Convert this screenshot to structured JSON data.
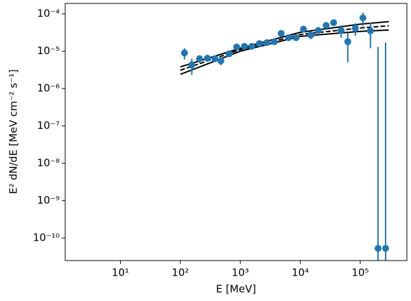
{
  "chart_data": {
    "type": "scatter",
    "xlabel": "E [MeV]",
    "ylabel": "E² dN/dE [MeV cm⁻² s⁻¹]",
    "xlog": true,
    "ylog": true,
    "xlim": [
      1.2,
      600000
    ],
    "ylim": [
      2.5e-11,
      0.00019
    ],
    "xticks": [
      {
        "value": 10,
        "label": "10¹"
      },
      {
        "value": 100,
        "label": "10²"
      },
      {
        "value": 1000,
        "label": "10³"
      },
      {
        "value": 10000,
        "label": "10⁴"
      },
      {
        "value": 100000,
        "label": "10⁵"
      }
    ],
    "yticks": [
      {
        "value": 1e-10,
        "label": "10⁻¹⁰"
      },
      {
        "value": 1e-09,
        "label": "10⁻⁹"
      },
      {
        "value": 1e-08,
        "label": "10⁻⁸"
      },
      {
        "value": 1e-07,
        "label": "10⁻⁷"
      },
      {
        "value": 1e-06,
        "label": "10⁻⁶"
      },
      {
        "value": 1e-05,
        "label": "10⁻⁵"
      },
      {
        "value": 0.0001,
        "label": "10⁻⁴"
      }
    ],
    "points": {
      "color": "#1f77b4",
      "x": [
        117,
        155,
        209,
        282,
        378,
        474,
        650,
        870,
        1170,
        1560,
        2080,
        2780,
        3700,
        4800,
        6400,
        8500,
        11300,
        15000,
        20000,
        27000,
        36000,
        48000,
        62000,
        83000,
        111000,
        148000,
        198000,
        265000
      ],
      "values": [
        9e-06,
        4.3e-06,
        6.3e-06,
        6.5e-06,
        6.3e-06,
        5.5e-06,
        8.5e-06,
        1.3e-05,
        1.35e-05,
        1.35e-05,
        1.6e-05,
        1.7e-05,
        1.8e-05,
        3e-05,
        2.3e-05,
        2.3e-05,
        3.9e-05,
        2.7e-05,
        3.6e-05,
        4.9e-05,
        5.8e-05,
        3.6e-05,
        1.8e-05,
        4.1e-05,
        7.8e-05,
        3.5e-05,
        5.3e-11,
        5.3e-11
      ],
      "errors": [
        3e-06,
        2e-06,
        1.5e-06,
        1.3e-06,
        1.2e-06,
        1.3e-06,
        1.5e-06,
        1.8e-06,
        1.8e-06,
        1.8e-06,
        2e-06,
        2.2e-06,
        2.5e-06,
        4e-06,
        4e-06,
        4e-06,
        5e-06,
        6e-06,
        6e-06,
        9e-06,
        1e-05,
        1.3e-05,
        1.3e-05,
        1.5e-05,
        3e-05,
        2.3e-05,
        1.3e-05,
        1.7e-05
      ]
    },
    "lines": [
      {
        "color": "#000000",
        "style": "solid",
        "x": [
          100,
          1000,
          10000,
          100000,
          300000
        ],
        "values": [
          2.4e-06,
          1e-05,
          2.5e-05,
          3.4e-05,
          3.7e-05
        ]
      },
      {
        "color": "#000000",
        "style": "dashed",
        "x": [
          100,
          1000,
          10000,
          100000,
          300000
        ],
        "values": [
          3.1e-06,
          1.1e-05,
          2.8e-05,
          4.2e-05,
          4.8e-05
        ]
      },
      {
        "color": "#000000",
        "style": "solid",
        "x": [
          100,
          1000,
          10000,
          100000,
          300000
        ],
        "values": [
          3.8e-06,
          1.2e-05,
          3.2e-05,
          5.3e-05,
          6.2e-05
        ]
      }
    ]
  }
}
